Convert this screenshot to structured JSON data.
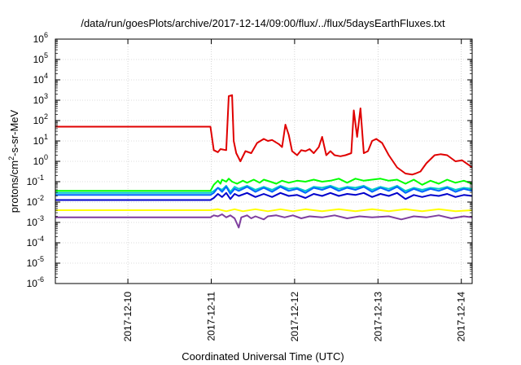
{
  "chart_data": {
    "type": "line",
    "title": "/data/run/goesPlots/archive/2017-12-14/09:00/flux/../flux/5daysEarthFluxes.txt",
    "xlabel": "Coordinated Universal Time (UTC)",
    "ylabel_base": "protons/cm",
    "ylabel_sup": "2",
    "ylabel_tail": "-s-sr-MeV",
    "yscale": "log",
    "ylim_exp": [
      -6,
      6
    ],
    "y_ticks": [
      {
        "base": "10",
        "exp": "6"
      },
      {
        "base": "10",
        "exp": "5"
      },
      {
        "base": "10",
        "exp": "4"
      },
      {
        "base": "10",
        "exp": "3"
      },
      {
        "base": "10",
        "exp": "2"
      },
      {
        "base": "10",
        "exp": "1"
      },
      {
        "base": "10",
        "exp": "0"
      },
      {
        "base": "10",
        "exp": "-1"
      },
      {
        "base": "10",
        "exp": "-2"
      },
      {
        "base": "10",
        "exp": "-3"
      },
      {
        "base": "10",
        "exp": "-4"
      },
      {
        "base": "10",
        "exp": "-5"
      },
      {
        "base": "10",
        "exp": "-6"
      }
    ],
    "x_range_days": [
      0,
      5
    ],
    "x_ticks": [
      {
        "label": "2017-12-10",
        "day": 0.87
      },
      {
        "label": "2017-12-11",
        "day": 1.87
      },
      {
        "label": "2017-12-12",
        "day": 2.87
      },
      {
        "label": "2017-12-13",
        "day": 3.87
      },
      {
        "label": "2017-12-14",
        "day": 4.87
      }
    ],
    "grid": true,
    "legend": "none",
    "series": [
      {
        "color": "#e00000",
        "points": [
          [
            0,
            1.7
          ],
          [
            1.86,
            1.7
          ],
          [
            1.9,
            0.55
          ],
          [
            1.95,
            0.45
          ],
          [
            1.98,
            0.6
          ],
          [
            2.05,
            0.55
          ],
          [
            2.08,
            3.2
          ],
          [
            2.12,
            3.25
          ],
          [
            2.14,
            1.0
          ],
          [
            2.17,
            0.4
          ],
          [
            2.22,
            0.0
          ],
          [
            2.28,
            0.5
          ],
          [
            2.35,
            0.4
          ],
          [
            2.42,
            0.9
          ],
          [
            2.5,
            1.1
          ],
          [
            2.55,
            1.0
          ],
          [
            2.6,
            1.05
          ],
          [
            2.68,
            0.85
          ],
          [
            2.72,
            0.7
          ],
          [
            2.76,
            1.8
          ],
          [
            2.8,
            1.3
          ],
          [
            2.84,
            0.5
          ],
          [
            2.9,
            0.3
          ],
          [
            2.95,
            0.55
          ],
          [
            3.0,
            0.5
          ],
          [
            3.05,
            0.6
          ],
          [
            3.1,
            0.4
          ],
          [
            3.16,
            0.7
          ],
          [
            3.2,
            1.2
          ],
          [
            3.25,
            0.3
          ],
          [
            3.3,
            0.5
          ],
          [
            3.35,
            0.3
          ],
          [
            3.42,
            0.25
          ],
          [
            3.48,
            0.3
          ],
          [
            3.55,
            0.4
          ],
          [
            3.58,
            2.5
          ],
          [
            3.62,
            1.2
          ],
          [
            3.66,
            2.6
          ],
          [
            3.7,
            0.4
          ],
          [
            3.75,
            0.5
          ],
          [
            3.8,
            1.0
          ],
          [
            3.85,
            1.1
          ],
          [
            3.92,
            0.9
          ],
          [
            4.0,
            0.3
          ],
          [
            4.1,
            -0.3
          ],
          [
            4.2,
            -0.6
          ],
          [
            4.28,
            -0.65
          ],
          [
            4.32,
            -0.6
          ],
          [
            4.38,
            -0.5
          ],
          [
            4.45,
            -0.1
          ],
          [
            4.5,
            0.1
          ],
          [
            4.55,
            0.3
          ],
          [
            4.62,
            0.35
          ],
          [
            4.7,
            0.3
          ],
          [
            4.8,
            0.0
          ],
          [
            4.88,
            0.05
          ],
          [
            4.95,
            -0.15
          ],
          [
            5.0,
            -0.3
          ]
        ]
      },
      {
        "color": "#00ff00",
        "points": [
          [
            0,
            -1.45
          ],
          [
            1.86,
            -1.45
          ],
          [
            1.9,
            -1.15
          ],
          [
            1.95,
            -0.95
          ],
          [
            1.98,
            -1.1
          ],
          [
            2.0,
            -0.9
          ],
          [
            2.05,
            -1.0
          ],
          [
            2.08,
            -0.85
          ],
          [
            2.12,
            -1.0
          ],
          [
            2.18,
            -1.1
          ],
          [
            2.25,
            -0.95
          ],
          [
            2.3,
            -1.05
          ],
          [
            2.38,
            -0.9
          ],
          [
            2.45,
            -1.05
          ],
          [
            2.5,
            -0.9
          ],
          [
            2.58,
            -1.0
          ],
          [
            2.65,
            -1.1
          ],
          [
            2.72,
            -0.95
          ],
          [
            2.8,
            -1.05
          ],
          [
            2.9,
            -0.95
          ],
          [
            3.0,
            -1.0
          ],
          [
            3.1,
            -0.9
          ],
          [
            3.2,
            -1.0
          ],
          [
            3.3,
            -0.95
          ],
          [
            3.4,
            -0.85
          ],
          [
            3.5,
            -1.05
          ],
          [
            3.6,
            -0.85
          ],
          [
            3.7,
            -0.95
          ],
          [
            3.8,
            -0.9
          ],
          [
            3.9,
            -0.85
          ],
          [
            4.0,
            -0.95
          ],
          [
            4.1,
            -0.9
          ],
          [
            4.2,
            -1.1
          ],
          [
            4.3,
            -0.9
          ],
          [
            4.4,
            -1.15
          ],
          [
            4.5,
            -0.95
          ],
          [
            4.6,
            -1.1
          ],
          [
            4.7,
            -0.9
          ],
          [
            4.8,
            -1.05
          ],
          [
            4.9,
            -0.95
          ],
          [
            5.0,
            -1.1
          ]
        ]
      },
      {
        "color": "#00cccc",
        "points": [
          [
            0,
            -1.55
          ],
          [
            1.86,
            -1.55
          ],
          [
            1.9,
            -1.45
          ],
          [
            1.95,
            -1.3
          ],
          [
            2.0,
            -1.4
          ],
          [
            2.05,
            -1.2
          ],
          [
            2.1,
            -1.5
          ],
          [
            2.15,
            -1.25
          ],
          [
            2.2,
            -1.35
          ],
          [
            2.3,
            -1.2
          ],
          [
            2.4,
            -1.4
          ],
          [
            2.5,
            -1.25
          ],
          [
            2.6,
            -1.4
          ],
          [
            2.7,
            -1.2
          ],
          [
            2.8,
            -1.35
          ],
          [
            2.9,
            -1.3
          ],
          [
            3.0,
            -1.45
          ],
          [
            3.1,
            -1.25
          ],
          [
            3.2,
            -1.3
          ],
          [
            3.3,
            -1.2
          ],
          [
            3.4,
            -1.35
          ],
          [
            3.5,
            -1.25
          ],
          [
            3.6,
            -1.3
          ],
          [
            3.7,
            -1.2
          ],
          [
            3.8,
            -1.4
          ],
          [
            3.9,
            -1.25
          ],
          [
            4.0,
            -1.35
          ],
          [
            4.1,
            -1.2
          ],
          [
            4.2,
            -1.45
          ],
          [
            4.3,
            -1.3
          ],
          [
            4.4,
            -1.4
          ],
          [
            4.5,
            -1.3
          ],
          [
            4.6,
            -1.35
          ],
          [
            4.7,
            -1.25
          ],
          [
            4.8,
            -1.4
          ],
          [
            4.9,
            -1.3
          ],
          [
            5.0,
            -1.35
          ]
        ]
      },
      {
        "color": "#0066ff",
        "points": [
          [
            0,
            -1.65
          ],
          [
            1.86,
            -1.65
          ],
          [
            1.9,
            -1.55
          ],
          [
            1.95,
            -1.3
          ],
          [
            2.0,
            -1.5
          ],
          [
            2.05,
            -1.25
          ],
          [
            2.1,
            -1.6
          ],
          [
            2.15,
            -1.35
          ],
          [
            2.2,
            -1.45
          ],
          [
            2.3,
            -1.25
          ],
          [
            2.4,
            -1.5
          ],
          [
            2.5,
            -1.3
          ],
          [
            2.6,
            -1.5
          ],
          [
            2.7,
            -1.25
          ],
          [
            2.8,
            -1.45
          ],
          [
            2.9,
            -1.35
          ],
          [
            3.0,
            -1.55
          ],
          [
            3.1,
            -1.3
          ],
          [
            3.2,
            -1.4
          ],
          [
            3.3,
            -1.25
          ],
          [
            3.4,
            -1.45
          ],
          [
            3.5,
            -1.3
          ],
          [
            3.6,
            -1.4
          ],
          [
            3.7,
            -1.25
          ],
          [
            3.8,
            -1.5
          ],
          [
            3.9,
            -1.3
          ],
          [
            4.0,
            -1.45
          ],
          [
            4.1,
            -1.25
          ],
          [
            4.2,
            -1.55
          ],
          [
            4.3,
            -1.35
          ],
          [
            4.4,
            -1.5
          ],
          [
            4.5,
            -1.35
          ],
          [
            4.6,
            -1.45
          ],
          [
            4.7,
            -1.3
          ],
          [
            4.8,
            -1.5
          ],
          [
            4.9,
            -1.35
          ],
          [
            5.0,
            -1.45
          ]
        ]
      },
      {
        "color": "#0000cc",
        "points": [
          [
            0,
            -1.9
          ],
          [
            1.86,
            -1.9
          ],
          [
            1.9,
            -1.8
          ],
          [
            1.95,
            -1.6
          ],
          [
            2.0,
            -1.75
          ],
          [
            2.05,
            -1.55
          ],
          [
            2.1,
            -1.85
          ],
          [
            2.15,
            -1.6
          ],
          [
            2.2,
            -1.7
          ],
          [
            2.3,
            -1.55
          ],
          [
            2.4,
            -1.75
          ],
          [
            2.5,
            -1.6
          ],
          [
            2.6,
            -1.75
          ],
          [
            2.7,
            -1.55
          ],
          [
            2.8,
            -1.7
          ],
          [
            2.9,
            -1.65
          ],
          [
            3.0,
            -1.8
          ],
          [
            3.1,
            -1.6
          ],
          [
            3.2,
            -1.7
          ],
          [
            3.3,
            -1.55
          ],
          [
            3.4,
            -1.7
          ],
          [
            3.5,
            -1.6
          ],
          [
            3.6,
            -1.65
          ],
          [
            3.7,
            -1.55
          ],
          [
            3.8,
            -1.75
          ],
          [
            3.9,
            -1.6
          ],
          [
            4.0,
            -1.7
          ],
          [
            4.1,
            -1.55
          ],
          [
            4.2,
            -1.85
          ],
          [
            4.3,
            -1.65
          ],
          [
            4.4,
            -1.75
          ],
          [
            4.5,
            -1.65
          ],
          [
            4.6,
            -1.7
          ],
          [
            4.7,
            -1.6
          ],
          [
            4.8,
            -1.75
          ],
          [
            4.9,
            -1.65
          ],
          [
            5.0,
            -1.7
          ]
        ]
      },
      {
        "color": "#ffff00",
        "points": [
          [
            0,
            -2.4
          ],
          [
            1.86,
            -2.4
          ],
          [
            1.95,
            -2.35
          ],
          [
            2.05,
            -2.45
          ],
          [
            2.15,
            -2.35
          ],
          [
            2.25,
            -2.45
          ],
          [
            2.4,
            -2.35
          ],
          [
            2.55,
            -2.45
          ],
          [
            2.7,
            -2.35
          ],
          [
            2.85,
            -2.45
          ],
          [
            3.0,
            -2.35
          ],
          [
            3.2,
            -2.45
          ],
          [
            3.4,
            -2.35
          ],
          [
            3.6,
            -2.45
          ],
          [
            3.8,
            -2.35
          ],
          [
            4.0,
            -2.45
          ],
          [
            4.2,
            -2.35
          ],
          [
            4.4,
            -2.45
          ],
          [
            4.6,
            -2.35
          ],
          [
            4.8,
            -2.45
          ],
          [
            5.0,
            -2.4
          ]
        ]
      },
      {
        "color": "#7f3f9f",
        "points": [
          [
            0,
            -2.75
          ],
          [
            1.86,
            -2.75
          ],
          [
            1.9,
            -2.65
          ],
          [
            1.95,
            -2.7
          ],
          [
            2.0,
            -2.6
          ],
          [
            2.05,
            -2.75
          ],
          [
            2.1,
            -2.65
          ],
          [
            2.15,
            -2.8
          ],
          [
            2.2,
            -3.25
          ],
          [
            2.23,
            -2.75
          ],
          [
            2.3,
            -2.65
          ],
          [
            2.35,
            -2.8
          ],
          [
            2.4,
            -2.7
          ],
          [
            2.5,
            -2.85
          ],
          [
            2.55,
            -2.7
          ],
          [
            2.65,
            -2.65
          ],
          [
            2.75,
            -2.75
          ],
          [
            2.85,
            -2.65
          ],
          [
            2.95,
            -2.8
          ],
          [
            3.05,
            -2.7
          ],
          [
            3.2,
            -2.75
          ],
          [
            3.35,
            -2.65
          ],
          [
            3.5,
            -2.8
          ],
          [
            3.65,
            -2.7
          ],
          [
            3.8,
            -2.75
          ],
          [
            4.0,
            -2.7
          ],
          [
            4.15,
            -2.85
          ],
          [
            4.3,
            -2.7
          ],
          [
            4.45,
            -2.75
          ],
          [
            4.6,
            -2.65
          ],
          [
            4.75,
            -2.8
          ],
          [
            4.9,
            -2.7
          ],
          [
            5.0,
            -2.75
          ]
        ]
      }
    ]
  }
}
